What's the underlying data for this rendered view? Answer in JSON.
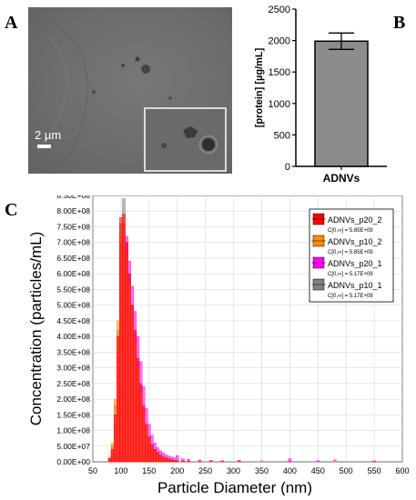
{
  "panels": {
    "a": "A",
    "b": "B",
    "c": "C"
  },
  "sem_image": {
    "scale_bar_label": "2 µm"
  },
  "chart_data": [
    {
      "type": "bar",
      "categories": [
        "ADNVs"
      ],
      "values": [
        1990
      ],
      "error": [
        130
      ],
      "ylabel": "[protein] [µg/mL]",
      "ylim": [
        0,
        2500
      ],
      "yticks": [
        0,
        500,
        1000,
        1500,
        2000,
        2500
      ],
      "bar_color": "#8c8c8c"
    },
    {
      "type": "bar",
      "xlabel": "Particle Diameter (nm)",
      "ylabel": "Concentration (particles/mL)",
      "xlim": [
        50,
        600
      ],
      "xticks": [
        "50",
        "100",
        "150",
        "200",
        "250",
        "300",
        "350",
        "400",
        "450",
        "500",
        "550",
        "600"
      ],
      "ylim": [
        0,
        850000000
      ],
      "yticks": [
        "0.00E+00",
        "5.00E+07",
        "1.00E+08",
        "1.50E+08",
        "2.00E+08",
        "2.50E+08",
        "3.00E+08",
        "3.50E+08",
        "4.00E+08",
        "4.50E+08",
        "5.00E+08",
        "5.50E+08",
        "6.00E+08",
        "6.50E+08",
        "7.00E+08",
        "7.50E+08",
        "8.00E+08",
        "8.50E+08"
      ],
      "grid": true,
      "legend_position": "top-right",
      "x": [
        80,
        85,
        90,
        95,
        100,
        105,
        110,
        115,
        120,
        125,
        130,
        135,
        140,
        145,
        150,
        155,
        160,
        165,
        170,
        175,
        180,
        185,
        190,
        195,
        200,
        210,
        220,
        240,
        260,
        280,
        310,
        350,
        400,
        450,
        480,
        550
      ],
      "series": [
        {
          "name": "ADNVs_p20_2",
          "note": "C[0,∞] = 5.85E+09",
          "color": "#ff0000",
          "values": [
            10000000,
            40000000,
            150000000,
            400000000,
            780000000,
            790000000,
            700000000,
            600000000,
            500000000,
            420000000,
            330000000,
            250000000,
            180000000,
            120000000,
            80000000,
            55000000,
            40000000,
            30000000,
            22000000,
            16000000,
            12000000,
            9000000,
            7000000,
            5000000,
            4000000,
            3000000,
            2000000,
            1500000,
            1200000,
            1000000,
            1500000,
            0,
            1000000,
            0,
            0,
            1000000
          ]
        },
        {
          "name": "ADNVs_p10_2",
          "note": "C[0,∞] = 5.85E+09",
          "color": "#ff8c00",
          "values": [
            15000000,
            60000000,
            200000000,
            450000000,
            720000000,
            760000000,
            650000000,
            560000000,
            470000000,
            380000000,
            300000000,
            220000000,
            160000000,
            110000000,
            75000000,
            50000000,
            35000000,
            25000000,
            18000000,
            14000000,
            10000000,
            8000000,
            6000000,
            5000000,
            4000000,
            3000000,
            2500000,
            2000000,
            1500000,
            1000000,
            1500000,
            1000000,
            0,
            0,
            1000000,
            0
          ]
        },
        {
          "name": "ADNVs_p20_1",
          "note": "C[0,∞] = 5.17E+09",
          "color": "#ff00ff",
          "values": [
            8000000,
            30000000,
            120000000,
            350000000,
            700000000,
            760000000,
            720000000,
            640000000,
            560000000,
            480000000,
            400000000,
            320000000,
            240000000,
            170000000,
            120000000,
            85000000,
            60000000,
            45000000,
            35000000,
            28000000,
            22000000,
            18000000,
            15000000,
            13000000,
            20000000,
            10000000,
            8000000,
            6000000,
            5000000,
            4000000,
            5000000,
            3000000,
            10000000,
            4000000,
            6000000,
            3000000
          ]
        },
        {
          "name": "ADNVs_p10_1",
          "note": "C[0,∞] = 5.17E+09",
          "color": "#808080",
          "values": [
            12000000,
            50000000,
            180000000,
            420000000,
            760000000,
            840000000,
            700000000,
            600000000,
            500000000,
            410000000,
            320000000,
            240000000,
            170000000,
            115000000,
            78000000,
            52000000,
            38000000,
            28000000,
            20000000,
            15000000,
            11000000,
            8000000,
            6000000,
            5000000,
            4000000,
            3000000,
            2000000,
            1500000,
            1200000,
            1000000,
            1000000,
            0,
            0,
            0,
            0,
            0
          ]
        }
      ]
    }
  ]
}
